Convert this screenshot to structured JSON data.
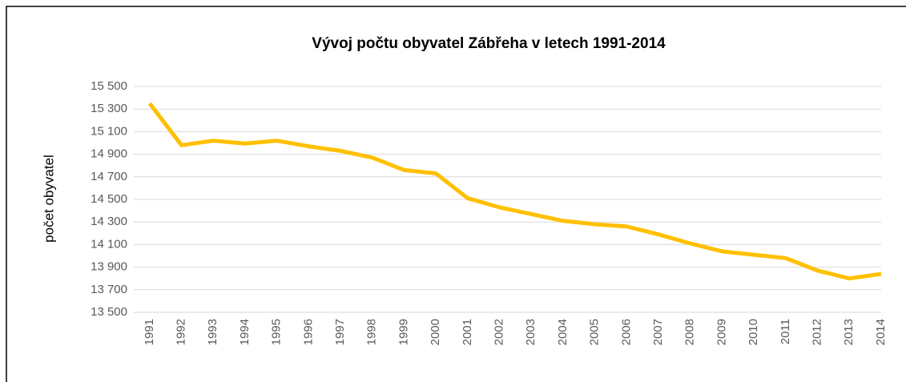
{
  "chart_data": {
    "type": "line",
    "title": "Vývoj počtu obyvatel Zábřeha v letech 1991-2014",
    "y_label": "počet obyvatel",
    "categories": [
      "1991",
      "1992",
      "1993",
      "1994",
      "1995",
      "1996",
      "1997",
      "1998",
      "1999",
      "2000",
      "2001",
      "2002",
      "2003",
      "2004",
      "2005",
      "2006",
      "2007",
      "2008",
      "2009",
      "2010",
      "2011",
      "2012",
      "2013",
      "2014"
    ],
    "series": [
      {
        "name": "počet obyvatel",
        "color": "#ffc000",
        "values": [
          15350,
          14980,
          15020,
          14995,
          15020,
          14970,
          14930,
          14870,
          14760,
          14730,
          14510,
          14430,
          14370,
          14310,
          14280,
          14260,
          14190,
          14110,
          14040,
          14010,
          13980,
          13870,
          13800,
          13840
        ]
      }
    ],
    "ylim": [
      13500,
      15500
    ],
    "yticks": [
      {
        "value": 13500,
        "label": "13 500"
      },
      {
        "value": 13700,
        "label": "13 700"
      },
      {
        "value": 13900,
        "label": "13 900"
      },
      {
        "value": 14100,
        "label": "14 100"
      },
      {
        "value": 14300,
        "label": "14 300"
      },
      {
        "value": 14500,
        "label": "14 500"
      },
      {
        "value": 14700,
        "label": "14 700"
      },
      {
        "value": 14900,
        "label": "14 900"
      },
      {
        "value": 15100,
        "label": "15 100"
      },
      {
        "value": 15300,
        "label": "15 300"
      },
      {
        "value": 15500,
        "label": "15 500"
      }
    ],
    "grid": true
  }
}
